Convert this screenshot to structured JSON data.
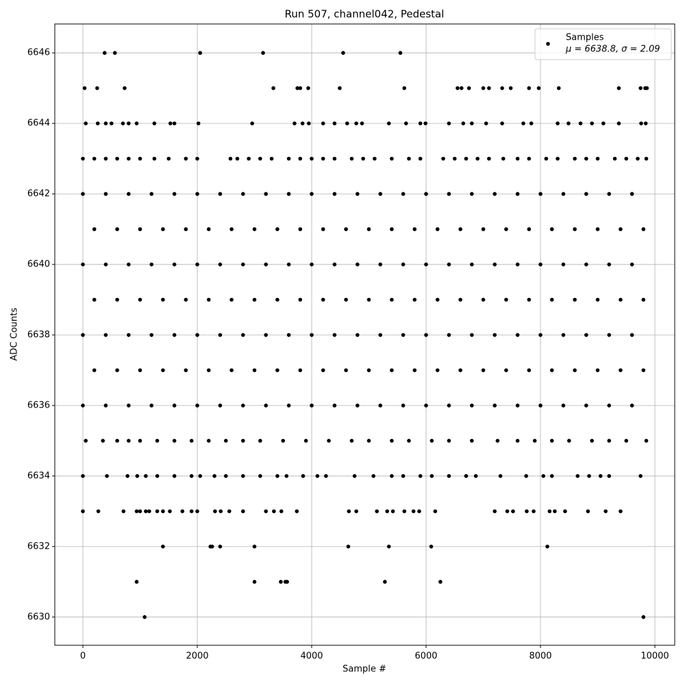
{
  "chart_data": {
    "type": "scatter",
    "title": "Run 507, channel042, Pedestal",
    "x_label": "Sample #",
    "y_label": "ADC Counts",
    "xlim": [
      -491,
      10347
    ],
    "ylim": [
      6629.2,
      6646.82
    ],
    "xticks": [
      0,
      2000,
      4000,
      6000,
      8000,
      10000
    ],
    "yticks": [
      6630,
      6632,
      6634,
      6636,
      6638,
      6640,
      6642,
      6644,
      6646
    ],
    "grid": true,
    "legend": "upper right",
    "legend_note": "μ = 6638.8, σ = 2.09",
    "x": [
      380,
      560,
      2050,
      3150,
      4550,
      5550,
      30,
      250,
      730,
      3330,
      3750,
      3800,
      3940,
      4490,
      5620,
      6550,
      6620,
      6750,
      7000,
      7100,
      7330,
      7480,
      7800,
      7970,
      8320,
      9370,
      9750,
      9830,
      9860,
      50,
      260,
      400,
      500,
      700,
      800,
      940,
      1250,
      1530,
      1600,
      2020,
      2960,
      3700,
      3840,
      3950,
      4200,
      4400,
      4620,
      4780,
      4880,
      5350,
      5650,
      5900,
      5990,
      6400,
      6650,
      6800,
      7050,
      7330,
      7700,
      7840,
      8300,
      8490,
      8700,
      8900,
      9100,
      9370,
      9760,
      9840,
      0,
      200,
      400,
      600,
      800,
      1000,
      1250,
      1500,
      1800,
      2000,
      2580,
      2700,
      2900,
      3100,
      3300,
      3600,
      3800,
      4000,
      4200,
      4400,
      4700,
      4900,
      5100,
      5400,
      5700,
      5900,
      6300,
      6500,
      6700,
      6900,
      7100,
      7350,
      7600,
      7800,
      8100,
      8300,
      8600,
      8800,
      9000,
      9300,
      9500,
      9700,
      9850,
      0,
      400,
      800,
      1200,
      1600,
      2000,
      2400,
      2800,
      3200,
      3600,
      4000,
      4400,
      4800,
      5200,
      5600,
      6000,
      6400,
      6800,
      7200,
      7600,
      8000,
      8400,
      8800,
      9200,
      9600,
      200,
      600,
      1000,
      1400,
      1800,
      2200,
      2600,
      3000,
      3400,
      3800,
      4200,
      4600,
      5000,
      5400,
      5800,
      6200,
      6600,
      7000,
      7400,
      7800,
      8200,
      8600,
      9000,
      9400,
      9800,
      0,
      400,
      800,
      1200,
      1600,
      2000,
      2400,
      2800,
      3200,
      3600,
      4000,
      4400,
      4800,
      5200,
      5600,
      6000,
      6400,
      6800,
      7200,
      7600,
      8000,
      8400,
      8800,
      9200,
      9600,
      200,
      600,
      1000,
      1400,
      1800,
      2200,
      2600,
      3000,
      3400,
      3800,
      4200,
      4600,
      5000,
      5400,
      5800,
      6200,
      6600,
      7000,
      7400,
      7800,
      8200,
      8600,
      9000,
      9400,
      9800,
      0,
      400,
      800,
      1200,
      1600,
      2000,
      2400,
      2800,
      3200,
      3600,
      4000,
      4400,
      4800,
      5200,
      5600,
      6000,
      6400,
      6800,
      7200,
      7600,
      8000,
      8400,
      8800,
      9200,
      9600,
      200,
      600,
      1000,
      1400,
      1800,
      2200,
      2600,
      3000,
      3400,
      3800,
      4200,
      4600,
      5000,
      5400,
      5800,
      6200,
      6600,
      7000,
      7400,
      7800,
      8200,
      8600,
      9000,
      9400,
      9800,
      0,
      400,
      800,
      1200,
      1600,
      2000,
      2400,
      2800,
      3200,
      3600,
      4000,
      4400,
      4800,
      5200,
      5600,
      6000,
      6400,
      6800,
      7200,
      7600,
      8000,
      8400,
      8800,
      9200,
      9600,
      50,
      350,
      600,
      800,
      1000,
      1300,
      1600,
      1900,
      2200,
      2500,
      2800,
      3100,
      3500,
      3900,
      4300,
      4700,
      5000,
      5400,
      5700,
      6100,
      6400,
      6800,
      7250,
      7600,
      7900,
      8200,
      8500,
      8900,
      9200,
      9500,
      9850,
      0,
      420,
      780,
      950,
      1100,
      1300,
      1600,
      1900,
      2050,
      2300,
      2500,
      2800,
      3100,
      3400,
      3560,
      3850,
      4100,
      4250,
      4750,
      5080,
      5400,
      5600,
      5900,
      6100,
      6400,
      6700,
      6870,
      7300,
      7750,
      8050,
      8200,
      8650,
      8850,
      9050,
      9200,
      9750,
      0,
      270,
      710,
      940,
      1000,
      1100,
      1160,
      1300,
      1400,
      1520,
      1740,
      1900,
      2000,
      2310,
      2410,
      2560,
      2800,
      3200,
      3340,
      3470,
      3740,
      4650,
      4780,
      5140,
      5320,
      5420,
      5620,
      5780,
      5880,
      6160,
      7200,
      7420,
      7520,
      7760,
      7880,
      8160,
      8250,
      8430,
      8830,
      9140,
      9400,
      1400,
      2230,
      2260,
      2400,
      3000,
      4640,
      5350,
      6090,
      8120,
      940,
      3000,
      3460,
      3540,
      3570,
      5280,
      6250,
      1080,
      9800
    ],
    "series": [
      {
        "name": "Samples",
        "color": "#000000",
        "values": [
          6646,
          6646,
          6646,
          6646,
          6646,
          6646,
          6645,
          6645,
          6645,
          6645,
          6645,
          6645,
          6645,
          6645,
          6645,
          6645,
          6645,
          6645,
          6645,
          6645,
          6645,
          6645,
          6645,
          6645,
          6645,
          6645,
          6645,
          6645,
          6645,
          6644,
          6644,
          6644,
          6644,
          6644,
          6644,
          6644,
          6644,
          6644,
          6644,
          6644,
          6644,
          6644,
          6644,
          6644,
          6644,
          6644,
          6644,
          6644,
          6644,
          6644,
          6644,
          6644,
          6644,
          6644,
          6644,
          6644,
          6644,
          6644,
          6644,
          6644,
          6644,
          6644,
          6644,
          6644,
          6644,
          6644,
          6644,
          6644,
          6643,
          6643,
          6643,
          6643,
          6643,
          6643,
          6643,
          6643,
          6643,
          6643,
          6643,
          6643,
          6643,
          6643,
          6643,
          6643,
          6643,
          6643,
          6643,
          6643,
          6643,
          6643,
          6643,
          6643,
          6643,
          6643,
          6643,
          6643,
          6643,
          6643,
          6643,
          6643,
          6643,
          6643,
          6643,
          6643,
          6643,
          6643,
          6643,
          6643,
          6643,
          6643,
          6643,
          6642,
          6642,
          6642,
          6642,
          6642,
          6642,
          6642,
          6642,
          6642,
          6642,
          6642,
          6642,
          6642,
          6642,
          6642,
          6642,
          6642,
          6642,
          6642,
          6642,
          6642,
          6642,
          6642,
          6642,
          6642,
          6641,
          6641,
          6641,
          6641,
          6641,
          6641,
          6641,
          6641,
          6641,
          6641,
          6641,
          6641,
          6641,
          6641,
          6641,
          6641,
          6641,
          6641,
          6641,
          6641,
          6641,
          6641,
          6641,
          6641,
          6641,
          6640,
          6640,
          6640,
          6640,
          6640,
          6640,
          6640,
          6640,
          6640,
          6640,
          6640,
          6640,
          6640,
          6640,
          6640,
          6640,
          6640,
          6640,
          6640,
          6640,
          6640,
          6640,
          6640,
          6640,
          6640,
          6639,
          6639,
          6639,
          6639,
          6639,
          6639,
          6639,
          6639,
          6639,
          6639,
          6639,
          6639,
          6639,
          6639,
          6639,
          6639,
          6639,
          6639,
          6639,
          6639,
          6639,
          6639,
          6639,
          6639,
          6639,
          6638,
          6638,
          6638,
          6638,
          6638,
          6638,
          6638,
          6638,
          6638,
          6638,
          6638,
          6638,
          6638,
          6638,
          6638,
          6638,
          6638,
          6638,
          6638,
          6638,
          6638,
          6638,
          6638,
          6638,
          6638,
          6637,
          6637,
          6637,
          6637,
          6637,
          6637,
          6637,
          6637,
          6637,
          6637,
          6637,
          6637,
          6637,
          6637,
          6637,
          6637,
          6637,
          6637,
          6637,
          6637,
          6637,
          6637,
          6637,
          6637,
          6637,
          6636,
          6636,
          6636,
          6636,
          6636,
          6636,
          6636,
          6636,
          6636,
          6636,
          6636,
          6636,
          6636,
          6636,
          6636,
          6636,
          6636,
          6636,
          6636,
          6636,
          6636,
          6636,
          6636,
          6636,
          6636,
          6635,
          6635,
          6635,
          6635,
          6635,
          6635,
          6635,
          6635,
          6635,
          6635,
          6635,
          6635,
          6635,
          6635,
          6635,
          6635,
          6635,
          6635,
          6635,
          6635,
          6635,
          6635,
          6635,
          6635,
          6635,
          6635,
          6635,
          6635,
          6635,
          6635,
          6635,
          6634,
          6634,
          6634,
          6634,
          6634,
          6634,
          6634,
          6634,
          6634,
          6634,
          6634,
          6634,
          6634,
          6634,
          6634,
          6634,
          6634,
          6634,
          6634,
          6634,
          6634,
          6634,
          6634,
          6634,
          6634,
          6634,
          6634,
          6634,
          6634,
          6634,
          6634,
          6634,
          6634,
          6634,
          6634,
          6634,
          6633,
          6633,
          6633,
          6633,
          6633,
          6633,
          6633,
          6633,
          6633,
          6633,
          6633,
          6633,
          6633,
          6633,
          6633,
          6633,
          6633,
          6633,
          6633,
          6633,
          6633,
          6633,
          6633,
          6633,
          6633,
          6633,
          6633,
          6633,
          6633,
          6633,
          6633,
          6633,
          6633,
          6633,
          6633,
          6633,
          6633,
          6633,
          6633,
          6633,
          6633,
          6632,
          6632,
          6632,
          6632,
          6632,
          6632,
          6632,
          6632,
          6632,
          6631,
          6631,
          6631,
          6631,
          6631,
          6631,
          6631,
          6630,
          6630
        ]
      }
    ]
  }
}
